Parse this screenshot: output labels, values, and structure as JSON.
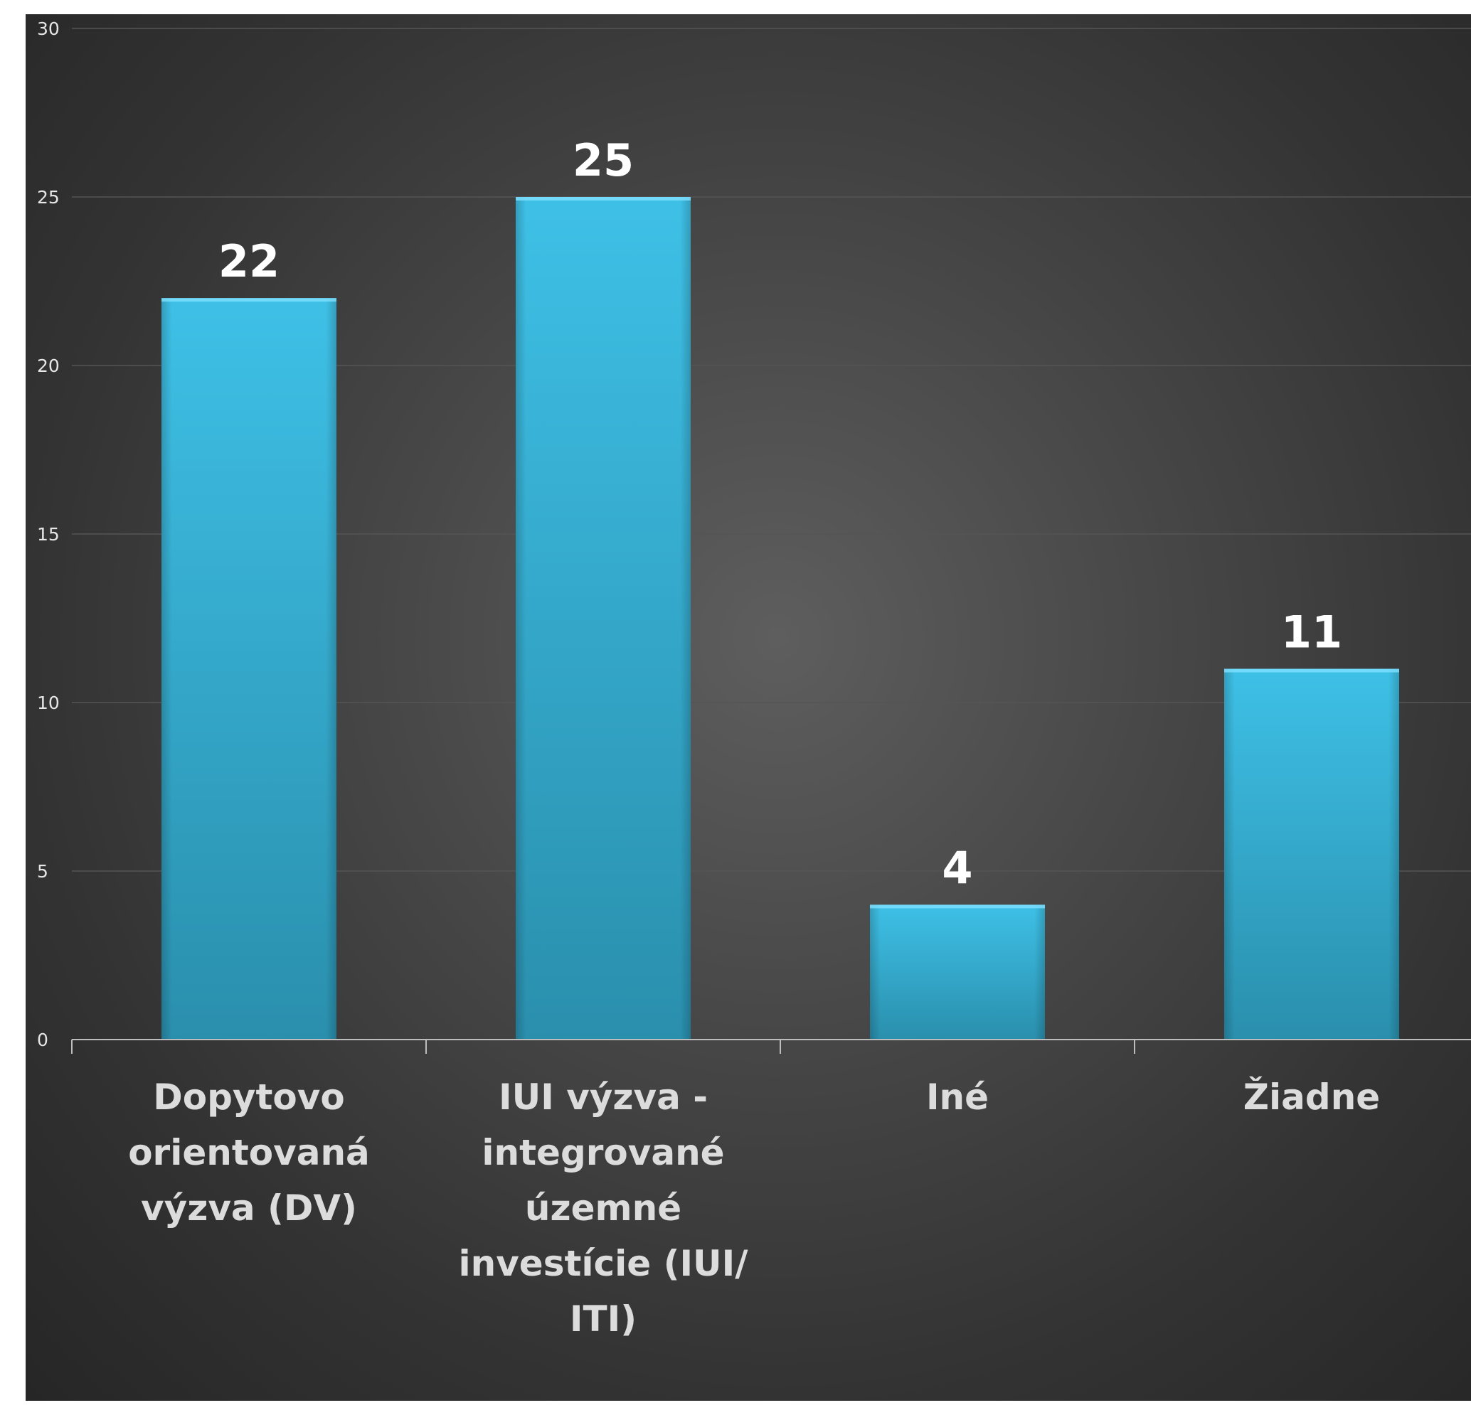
{
  "chart_data": {
    "type": "bar",
    "categories": [
      "Dopytovo orientovaná výzva (DV)",
      "IUI výzva - integrované územné investície (IUI/ ITI)",
      "Iné",
      "Žiadne"
    ],
    "values": [
      22,
      25,
      4,
      11
    ],
    "data_labels": [
      "22",
      "25",
      "4",
      "11"
    ],
    "ylim": [
      0,
      30
    ],
    "yticks": [
      "0",
      "5",
      "10",
      "15",
      "20",
      "25",
      "30"
    ],
    "grid": true,
    "legend": "none",
    "colors": {
      "bar_top": "#3ec0e6",
      "bar_bottom": "#2a8fad",
      "gridline": "#555555",
      "axis": "#bdbdbd"
    }
  }
}
